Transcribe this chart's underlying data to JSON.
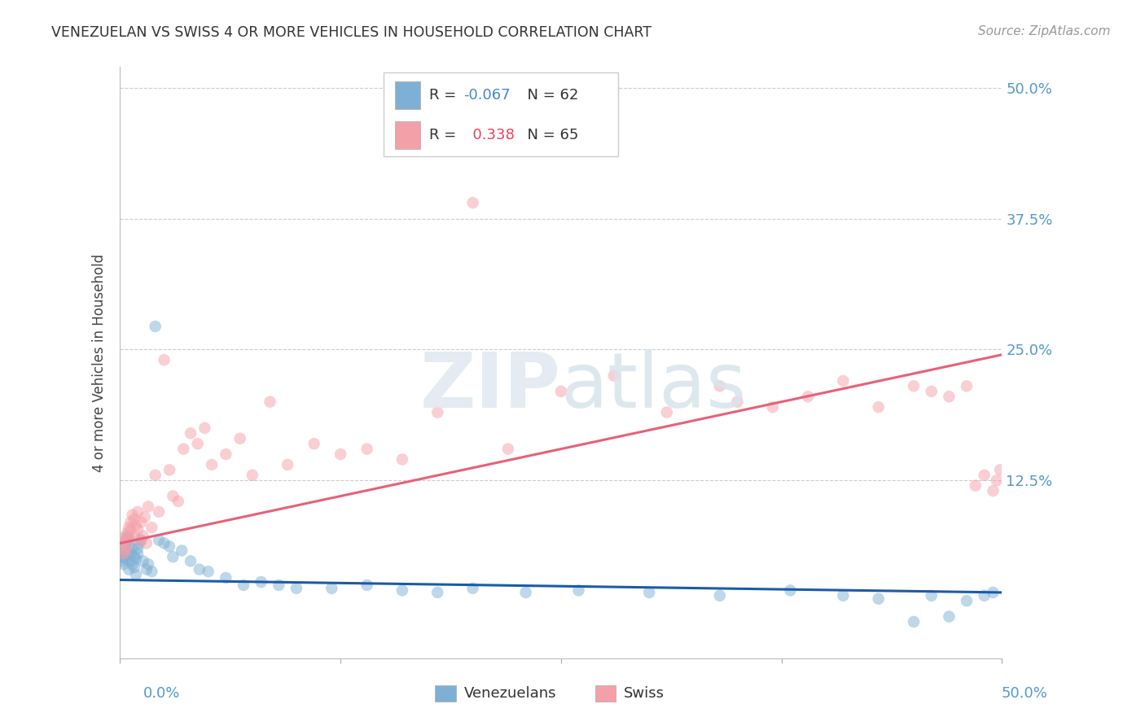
{
  "title": "VENEZUELAN VS SWISS 4 OR MORE VEHICLES IN HOUSEHOLD CORRELATION CHART",
  "source": "Source: ZipAtlas.com",
  "ylabel": "4 or more Vehicles in Household",
  "blue_color": "#7EB0D5",
  "pink_color": "#F4A0A8",
  "line_blue_color": "#1A5CA8",
  "line_pink_color": "#E8607A",
  "xmin": 0.0,
  "xmax": 0.5,
  "ymin": -0.045,
  "ymax": 0.52,
  "blue_line_y0": 0.03,
  "blue_line_y1": 0.018,
  "pink_line_y0": 0.065,
  "pink_line_y1": 0.245,
  "yticks": [
    0.125,
    0.25,
    0.375,
    0.5
  ],
  "ytick_labels": [
    "12.5%",
    "25.0%",
    "37.5%",
    "50.0%"
  ],
  "tick_color": "#5599CC",
  "venezuelan_x": [
    0.001,
    0.001,
    0.002,
    0.002,
    0.002,
    0.003,
    0.003,
    0.003,
    0.004,
    0.004,
    0.004,
    0.005,
    0.005,
    0.005,
    0.006,
    0.006,
    0.007,
    0.007,
    0.008,
    0.008,
    0.009,
    0.009,
    0.01,
    0.01,
    0.011,
    0.012,
    0.013,
    0.015,
    0.016,
    0.018,
    0.02,
    0.022,
    0.025,
    0.028,
    0.03,
    0.035,
    0.04,
    0.045,
    0.05,
    0.06,
    0.07,
    0.08,
    0.09,
    0.1,
    0.12,
    0.14,
    0.16,
    0.18,
    0.2,
    0.23,
    0.26,
    0.3,
    0.34,
    0.38,
    0.41,
    0.43,
    0.45,
    0.46,
    0.47,
    0.48,
    0.49,
    0.495
  ],
  "venezuelan_y": [
    0.048,
    0.055,
    0.052,
    0.06,
    0.045,
    0.058,
    0.065,
    0.05,
    0.068,
    0.072,
    0.055,
    0.07,
    0.062,
    0.04,
    0.055,
    0.048,
    0.06,
    0.045,
    0.042,
    0.052,
    0.05,
    0.035,
    0.06,
    0.055,
    0.065,
    0.068,
    0.048,
    0.04,
    0.045,
    0.038,
    0.272,
    0.068,
    0.065,
    0.062,
    0.052,
    0.058,
    0.048,
    0.04,
    0.038,
    0.032,
    0.025,
    0.028,
    0.025,
    0.022,
    0.022,
    0.025,
    0.02,
    0.018,
    0.022,
    0.018,
    0.02,
    0.018,
    0.015,
    0.02,
    0.015,
    0.012,
    -0.01,
    0.015,
    -0.005,
    0.01,
    0.015,
    0.018
  ],
  "swiss_x": [
    0.001,
    0.002,
    0.002,
    0.003,
    0.003,
    0.004,
    0.004,
    0.005,
    0.005,
    0.006,
    0.006,
    0.007,
    0.008,
    0.008,
    0.009,
    0.01,
    0.01,
    0.011,
    0.012,
    0.013,
    0.014,
    0.015,
    0.016,
    0.018,
    0.02,
    0.022,
    0.025,
    0.028,
    0.03,
    0.033,
    0.036,
    0.04,
    0.044,
    0.048,
    0.052,
    0.06,
    0.068,
    0.075,
    0.085,
    0.095,
    0.11,
    0.125,
    0.14,
    0.16,
    0.18,
    0.2,
    0.22,
    0.25,
    0.28,
    0.31,
    0.34,
    0.35,
    0.37,
    0.39,
    0.41,
    0.43,
    0.45,
    0.46,
    0.47,
    0.48,
    0.485,
    0.49,
    0.495,
    0.497,
    0.499
  ],
  "swiss_y": [
    0.065,
    0.07,
    0.055,
    0.068,
    0.058,
    0.075,
    0.062,
    0.08,
    0.07,
    0.085,
    0.078,
    0.092,
    0.072,
    0.088,
    0.082,
    0.095,
    0.078,
    0.068,
    0.085,
    0.072,
    0.09,
    0.065,
    0.1,
    0.08,
    0.13,
    0.095,
    0.24,
    0.135,
    0.11,
    0.105,
    0.155,
    0.17,
    0.16,
    0.175,
    0.14,
    0.15,
    0.165,
    0.13,
    0.2,
    0.14,
    0.16,
    0.15,
    0.155,
    0.145,
    0.19,
    0.39,
    0.155,
    0.21,
    0.225,
    0.19,
    0.215,
    0.2,
    0.195,
    0.205,
    0.22,
    0.195,
    0.215,
    0.21,
    0.205,
    0.215,
    0.12,
    0.13,
    0.115,
    0.125,
    0.135
  ]
}
